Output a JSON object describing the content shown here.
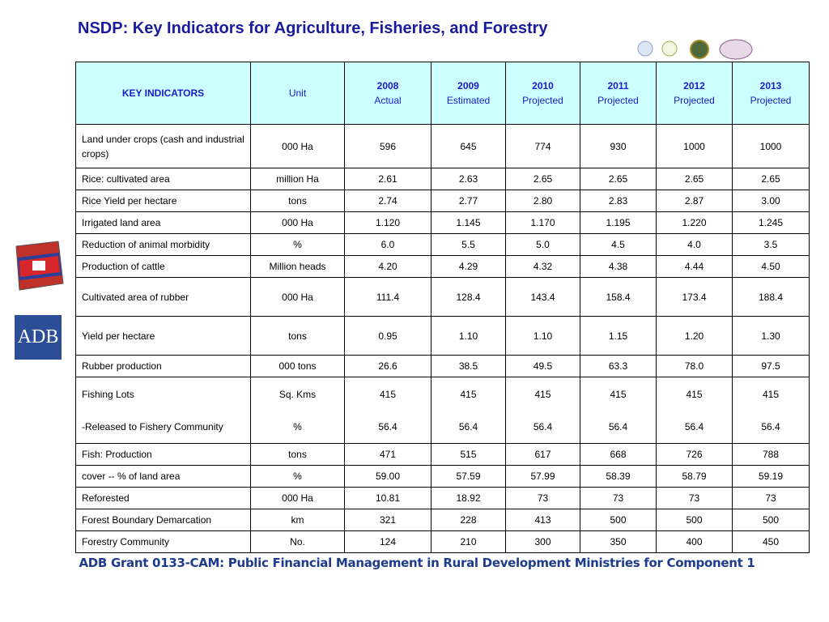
{
  "header": {
    "title": "NSDP: Key Indicators for Agriculture, Fisheries, and Forestry"
  },
  "logos": {
    "adb": "ADB"
  },
  "table": {
    "columns": {
      "indicator": "KEY INDICATORS",
      "unit": "Unit",
      "years": [
        {
          "year": "2008",
          "status": "Actual"
        },
        {
          "year": "2009",
          "status": "Estimated"
        },
        {
          "year": "2010",
          "status": "Projected"
        },
        {
          "year": "2011",
          "status": "Projected"
        },
        {
          "year": "2012",
          "status": "Projected"
        },
        {
          "year": "2013",
          "status": "Projected"
        }
      ]
    },
    "rows": [
      {
        "lines": [
          {
            "indicator": "Land under crops (cash and industrial crops)",
            "unit": "000 Ha",
            "values": [
              "596",
              "645",
              "774",
              "930",
              "1000",
              "1000"
            ]
          }
        ]
      },
      {
        "lines": [
          {
            "indicator": "Rice: cultivated area",
            "unit": "million Ha",
            "values": [
              "2.61",
              "2.63",
              "2.65",
              "2.65",
              "2.65",
              "2.65"
            ]
          }
        ]
      },
      {
        "lines": [
          {
            "indicator": "Rice Yield per hectare",
            "unit": "tons",
            "values": [
              "2.74",
              "2.77",
              "2.80",
              "2.83",
              "2.87",
              "3.00"
            ]
          }
        ]
      },
      {
        "lines": [
          {
            "indicator": "Irrigated land area",
            "unit": "000 Ha",
            "values": [
              "1.120",
              "1.145",
              "1.170",
              "1.195",
              "1.220",
              "1.245"
            ]
          }
        ]
      },
      {
        "lines": [
          {
            "indicator": "Reduction of animal morbidity",
            "unit": "%",
            "values": [
              "6.0",
              "5.5",
              "5.0",
              "4.5",
              "4.0",
              "3.5"
            ]
          }
        ]
      },
      {
        "lines": [
          {
            "indicator": "Production of cattle",
            "unit": "Million heads",
            "values": [
              "4.20",
              "4.29",
              "4.32",
              "4.38",
              "4.44",
              "4.50"
            ]
          }
        ]
      },
      {
        "lines": [
          {
            "indicator": "Cultivated area of rubber",
            "unit": "000 Ha",
            "values": [
              "111.4",
              "128.4",
              "143.4",
              "158.4",
              "173.4",
              "188.4"
            ]
          }
        ]
      },
      {
        "lines": [
          {
            "indicator": "Yield per hectare",
            "unit": "tons",
            "values": [
              "0.95",
              "1.10",
              "1.10",
              "1.15",
              "1.20",
              "1.30"
            ]
          }
        ]
      },
      {
        "lines": [
          {
            "indicator": "Rubber production",
            "unit": "000 tons",
            "values": [
              "26.6",
              "38.5",
              "49.5",
              "63.3",
              "78.0",
              "97.5"
            ]
          }
        ]
      },
      {
        "lines": [
          {
            "indicator": "Fishing Lots",
            "unit": "Sq. Kms",
            "values": [
              "415",
              "415",
              "415",
              "415",
              "415",
              "415"
            ]
          },
          {
            "indicator": "-Released to Fishery Community",
            "unit": "%",
            "values": [
              "56.4",
              "56.4",
              "56.4",
              "56.4",
              "56.4",
              "56.4"
            ]
          }
        ]
      },
      {
        "lines": [
          {
            "indicator": "Fish: Production",
            "unit": "tons",
            "values": [
              "471",
              "515",
              "617",
              "668",
              "726",
              "788"
            ]
          }
        ]
      },
      {
        "lines": [
          {
            "indicator": "cover -- % of land area",
            "unit": "%",
            "values": [
              "59.00",
              "57.59",
              "57.99",
              "58.39",
              "58.79",
              "59.19"
            ]
          }
        ]
      },
      {
        "lines": [
          {
            "indicator": "Reforested",
            "unit": "000 Ha",
            "values": [
              "10.81",
              "18.92",
              "73",
              "73",
              "73",
              "73"
            ]
          }
        ]
      },
      {
        "lines": [
          {
            "indicator": "Forest Boundary Demarcation",
            "unit": "km",
            "values": [
              "321",
              "228",
              "413",
              "500",
              "500",
              "500"
            ]
          }
        ]
      },
      {
        "lines": [
          {
            "indicator": "Forestry Community",
            "unit": "No.",
            "values": [
              "124",
              "210",
              "300",
              "350",
              "400",
              "450"
            ]
          }
        ]
      }
    ]
  },
  "footer": {
    "text": "ADB Grant 0133-CAM: Public Financial Management in Rural Development Ministries for Component 1"
  }
}
